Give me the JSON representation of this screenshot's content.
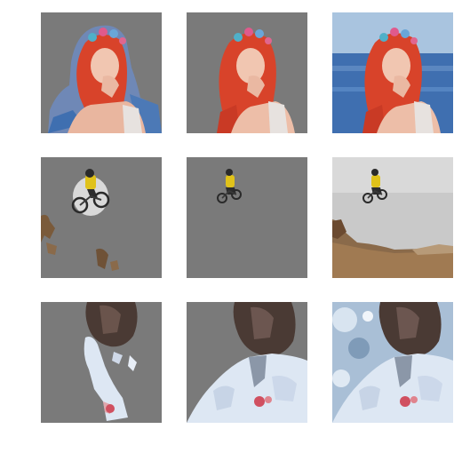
{
  "grid": {
    "rows": 3,
    "cols": 3,
    "panels": [
      {
        "row": 0,
        "col": 0,
        "kind": "masked-coarse",
        "subject": "woman-with-flower-crown"
      },
      {
        "row": 0,
        "col": 1,
        "kind": "masked-refined",
        "subject": "woman-with-flower-crown"
      },
      {
        "row": 0,
        "col": 2,
        "kind": "original",
        "subject": "woman-with-flower-crown"
      },
      {
        "row": 1,
        "col": 0,
        "kind": "masked-coarse",
        "subject": "mountain-biker-jump"
      },
      {
        "row": 1,
        "col": 1,
        "kind": "masked-refined",
        "subject": "mountain-biker-jump"
      },
      {
        "row": 1,
        "col": 2,
        "kind": "original",
        "subject": "mountain-biker-jump"
      },
      {
        "row": 2,
        "col": 0,
        "kind": "masked-coarse",
        "subject": "woman-in-white-coat-blurred"
      },
      {
        "row": 2,
        "col": 1,
        "kind": "masked-refined",
        "subject": "woman-in-white-coat-blurred"
      },
      {
        "row": 2,
        "col": 2,
        "kind": "original",
        "subject": "woman-in-white-coat-blurred"
      }
    ],
    "colors": {
      "mask_gray": "#7a7a7a",
      "sea_blue": "#3f6fb0",
      "sky_blue": "#a9c4df",
      "hair_red": "#d8432a",
      "skin": "#f1c6b1",
      "sky_gray": "#c9c9c9",
      "terrain_brown": "#8a6a4a",
      "coat_white": "#dde7f3",
      "hair_dark": "#3a2d2a"
    }
  }
}
